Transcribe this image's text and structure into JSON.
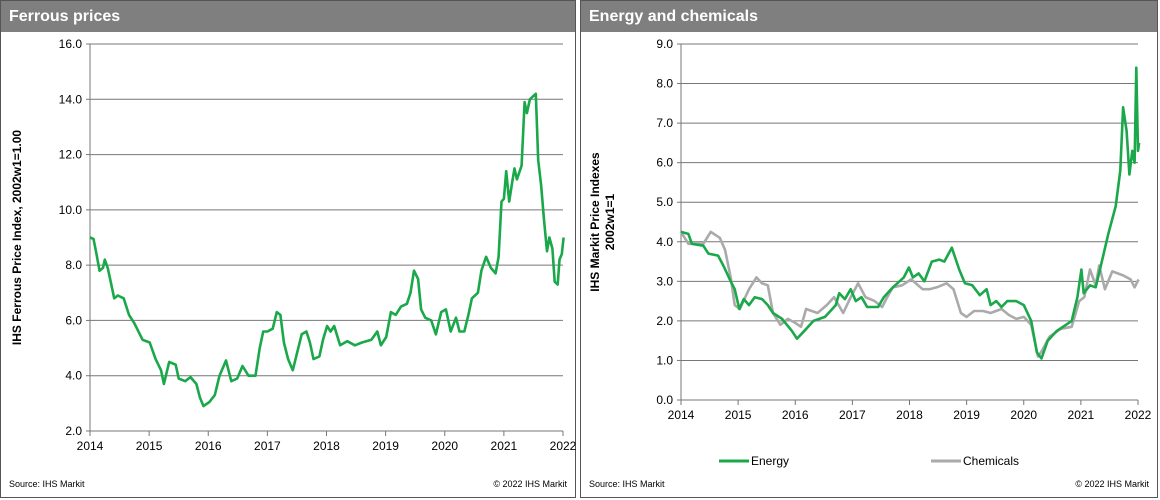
{
  "chart_data": [
    {
      "type": "line",
      "title": "Ferrous prices",
      "xlabel": "",
      "ylabel": "IHS Ferrous Price Index, 2002w1=1.00",
      "xlim": [
        2014,
        2022
      ],
      "ylim": [
        2.0,
        16.0
      ],
      "x_ticks": [
        "2014",
        "2015",
        "2016",
        "2017",
        "2018",
        "2019",
        "2020",
        "2021",
        "2022"
      ],
      "y_ticks": [
        "2.0",
        "4.0",
        "6.0",
        "8.0",
        "10.0",
        "12.0",
        "14.0",
        "16.0"
      ],
      "grid": true,
      "source": "Source:  IHS Markit",
      "copyright": "© 2022  IHS Markit",
      "series": [
        {
          "name": "Ferrous",
          "color": "#1aa84a",
          "points": [
            [
              2014.0,
              9.0
            ],
            [
              2014.06,
              8.95
            ],
            [
              2014.11,
              8.4
            ],
            [
              2014.16,
              7.8
            ],
            [
              2014.22,
              7.9
            ],
            [
              2014.25,
              8.2
            ],
            [
              2014.3,
              7.9
            ],
            [
              2014.35,
              7.4
            ],
            [
              2014.41,
              6.8
            ],
            [
              2014.47,
              6.9
            ],
            [
              2014.57,
              6.8
            ],
            [
              2014.66,
              6.2
            ],
            [
              2014.75,
              5.9
            ],
            [
              2014.89,
              5.3
            ],
            [
              2015.01,
              5.2
            ],
            [
              2015.11,
              4.6
            ],
            [
              2015.2,
              4.2
            ],
            [
              2015.25,
              3.7
            ],
            [
              2015.34,
              4.5
            ],
            [
              2015.45,
              4.4
            ],
            [
              2015.5,
              3.9
            ],
            [
              2015.61,
              3.8
            ],
            [
              2015.7,
              3.95
            ],
            [
              2015.8,
              3.7
            ],
            [
              2015.86,
              3.2
            ],
            [
              2015.92,
              2.9
            ],
            [
              2016.02,
              3.05
            ],
            [
              2016.11,
              3.3
            ],
            [
              2016.19,
              4.0
            ],
            [
              2016.3,
              4.55
            ],
            [
              2016.39,
              3.8
            ],
            [
              2016.49,
              3.9
            ],
            [
              2016.58,
              4.35
            ],
            [
              2016.68,
              4.0
            ],
            [
              2016.8,
              4.0
            ],
            [
              2016.87,
              5.0
            ],
            [
              2016.93,
              5.6
            ],
            [
              2017.0,
              5.6
            ],
            [
              2017.09,
              5.7
            ],
            [
              2017.16,
              6.3
            ],
            [
              2017.22,
              6.2
            ],
            [
              2017.28,
              5.2
            ],
            [
              2017.35,
              4.6
            ],
            [
              2017.43,
              4.2
            ],
            [
              2017.5,
              4.8
            ],
            [
              2017.58,
              5.5
            ],
            [
              2017.66,
              5.6
            ],
            [
              2017.72,
              5.2
            ],
            [
              2017.78,
              4.6
            ],
            [
              2017.88,
              4.7
            ],
            [
              2017.94,
              5.3
            ],
            [
              2018.01,
              5.8
            ],
            [
              2018.07,
              5.6
            ],
            [
              2018.13,
              5.8
            ],
            [
              2018.23,
              5.1
            ],
            [
              2018.35,
              5.25
            ],
            [
              2018.48,
              5.1
            ],
            [
              2018.6,
              5.2
            ],
            [
              2018.76,
              5.3
            ],
            [
              2018.86,
              5.6
            ],
            [
              2018.92,
              5.1
            ],
            [
              2019.01,
              5.4
            ],
            [
              2019.09,
              6.3
            ],
            [
              2019.17,
              6.2
            ],
            [
              2019.26,
              6.5
            ],
            [
              2019.36,
              6.6
            ],
            [
              2019.42,
              7.0
            ],
            [
              2019.48,
              7.8
            ],
            [
              2019.55,
              7.5
            ],
            [
              2019.6,
              6.4
            ],
            [
              2019.67,
              6.1
            ],
            [
              2019.77,
              6.0
            ],
            [
              2019.85,
              5.5
            ],
            [
              2019.94,
              6.3
            ],
            [
              2020.02,
              6.4
            ],
            [
              2020.1,
              5.6
            ],
            [
              2020.19,
              6.1
            ],
            [
              2020.25,
              5.6
            ],
            [
              2020.33,
              5.6
            ],
            [
              2020.4,
              6.2
            ],
            [
              2020.46,
              6.8
            ],
            [
              2020.56,
              7.0
            ],
            [
              2020.62,
              7.8
            ],
            [
              2020.7,
              8.3
            ],
            [
              2020.78,
              7.9
            ],
            [
              2020.86,
              7.7
            ],
            [
              2020.91,
              8.3
            ],
            [
              2020.96,
              10.3
            ],
            [
              2021.0,
              10.4
            ],
            [
              2021.04,
              11.4
            ],
            [
              2021.09,
              10.3
            ],
            [
              2021.14,
              11.0
            ],
            [
              2021.18,
              11.5
            ],
            [
              2021.22,
              11.1
            ],
            [
              2021.3,
              11.6
            ],
            [
              2021.35,
              13.9
            ],
            [
              2021.39,
              13.5
            ],
            [
              2021.44,
              14.0
            ],
            [
              2021.49,
              14.1
            ],
            [
              2021.54,
              14.2
            ],
            [
              2021.58,
              11.8
            ],
            [
              2021.63,
              10.9
            ],
            [
              2021.68,
              9.6
            ],
            [
              2021.73,
              8.5
            ],
            [
              2021.77,
              9.0
            ],
            [
              2021.82,
              8.6
            ],
            [
              2021.86,
              7.4
            ],
            [
              2021.91,
              7.3
            ],
            [
              2021.94,
              8.2
            ],
            [
              2021.98,
              8.4
            ],
            [
              2022.01,
              9.0
            ]
          ]
        }
      ]
    },
    {
      "type": "line",
      "title": "Energy and chemicals",
      "xlabel": "",
      "ylabel": "IHS Markit Price Indexes",
      "ylabel2": "2002w1=1",
      "xlim": [
        2014,
        2022
      ],
      "ylim": [
        0.0,
        9.0
      ],
      "x_ticks": [
        "2014",
        "2015",
        "2016",
        "2017",
        "2018",
        "2019",
        "2020",
        "2021",
        "2022"
      ],
      "y_ticks": [
        "0.0",
        "1.0",
        "2.0",
        "3.0",
        "4.0",
        "5.0",
        "6.0",
        "7.0",
        "8.0",
        "9.0"
      ],
      "grid": true,
      "legend": "bottom",
      "source": "Source:  IHS Markit",
      "copyright": "© 2022  IHS Markit",
      "series": [
        {
          "name": "Energy",
          "color": "#1aa84a",
          "points": [
            [
              2014.0,
              4.25
            ],
            [
              2014.13,
              4.2
            ],
            [
              2014.19,
              3.95
            ],
            [
              2014.39,
              3.9
            ],
            [
              2014.48,
              3.7
            ],
            [
              2014.65,
              3.65
            ],
            [
              2014.74,
              3.4
            ],
            [
              2014.87,
              3.0
            ],
            [
              2014.94,
              2.8
            ],
            [
              2015.02,
              2.3
            ],
            [
              2015.1,
              2.55
            ],
            [
              2015.19,
              2.4
            ],
            [
              2015.29,
              2.6
            ],
            [
              2015.42,
              2.55
            ],
            [
              2015.52,
              2.4
            ],
            [
              2015.61,
              2.2
            ],
            [
              2015.77,
              2.05
            ],
            [
              2015.94,
              1.75
            ],
            [
              2016.03,
              1.55
            ],
            [
              2016.16,
              1.75
            ],
            [
              2016.32,
              2.0
            ],
            [
              2016.52,
              2.1
            ],
            [
              2016.71,
              2.4
            ],
            [
              2016.77,
              2.7
            ],
            [
              2016.87,
              2.55
            ],
            [
              2016.97,
              2.8
            ],
            [
              2017.06,
              2.5
            ],
            [
              2017.16,
              2.6
            ],
            [
              2017.26,
              2.35
            ],
            [
              2017.45,
              2.35
            ],
            [
              2017.55,
              2.6
            ],
            [
              2017.71,
              2.85
            ],
            [
              2017.9,
              3.1
            ],
            [
              2017.99,
              3.35
            ],
            [
              2018.06,
              3.1
            ],
            [
              2018.16,
              3.2
            ],
            [
              2018.26,
              3.0
            ],
            [
              2018.39,
              3.5
            ],
            [
              2018.52,
              3.55
            ],
            [
              2018.61,
              3.5
            ],
            [
              2018.74,
              3.85
            ],
            [
              2018.87,
              3.3
            ],
            [
              2018.97,
              2.95
            ],
            [
              2019.1,
              2.9
            ],
            [
              2019.23,
              2.65
            ],
            [
              2019.35,
              2.8
            ],
            [
              2019.42,
              2.4
            ],
            [
              2019.52,
              2.5
            ],
            [
              2019.61,
              2.35
            ],
            [
              2019.71,
              2.5
            ],
            [
              2019.87,
              2.5
            ],
            [
              2020.0,
              2.4
            ],
            [
              2020.13,
              2.0
            ],
            [
              2020.23,
              1.2
            ],
            [
              2020.31,
              1.05
            ],
            [
              2020.42,
              1.5
            ],
            [
              2020.58,
              1.75
            ],
            [
              2020.74,
              1.9
            ],
            [
              2020.84,
              2.0
            ],
            [
              2020.94,
              2.6
            ],
            [
              2021.01,
              3.3
            ],
            [
              2021.05,
              2.7
            ],
            [
              2021.16,
              2.9
            ],
            [
              2021.26,
              2.85
            ],
            [
              2021.35,
              3.4
            ],
            [
              2021.48,
              4.2
            ],
            [
              2021.61,
              4.9
            ],
            [
              2021.69,
              5.8
            ],
            [
              2021.74,
              7.4
            ],
            [
              2021.8,
              6.8
            ],
            [
              2021.85,
              5.7
            ],
            [
              2021.9,
              6.3
            ],
            [
              2021.94,
              6.0
            ],
            [
              2021.97,
              8.4
            ],
            [
              2022.0,
              6.3
            ],
            [
              2022.02,
              6.5
            ]
          ]
        },
        {
          "name": "Chemicals",
          "color": "#aaaaaa",
          "points": [
            [
              2014.0,
              4.25
            ],
            [
              2014.13,
              3.95
            ],
            [
              2014.39,
              3.95
            ],
            [
              2014.52,
              4.25
            ],
            [
              2014.68,
              4.1
            ],
            [
              2014.77,
              3.8
            ],
            [
              2014.87,
              3.1
            ],
            [
              2014.94,
              2.4
            ],
            [
              2015.03,
              2.3
            ],
            [
              2015.19,
              2.8
            ],
            [
              2015.32,
              3.1
            ],
            [
              2015.42,
              2.95
            ],
            [
              2015.52,
              2.9
            ],
            [
              2015.61,
              2.2
            ],
            [
              2015.74,
              1.9
            ],
            [
              2015.87,
              2.05
            ],
            [
              2016.0,
              1.95
            ],
            [
              2016.1,
              1.85
            ],
            [
              2016.19,
              2.3
            ],
            [
              2016.39,
              2.2
            ],
            [
              2016.55,
              2.4
            ],
            [
              2016.68,
              2.6
            ],
            [
              2016.84,
              2.2
            ],
            [
              2016.97,
              2.6
            ],
            [
              2017.1,
              2.95
            ],
            [
              2017.23,
              2.6
            ],
            [
              2017.39,
              2.5
            ],
            [
              2017.52,
              2.35
            ],
            [
              2017.61,
              2.6
            ],
            [
              2017.71,
              2.85
            ],
            [
              2017.87,
              2.9
            ],
            [
              2018.03,
              3.05
            ],
            [
              2018.23,
              2.8
            ],
            [
              2018.35,
              2.8
            ],
            [
              2018.48,
              2.85
            ],
            [
              2018.65,
              2.95
            ],
            [
              2018.77,
              2.8
            ],
            [
              2018.9,
              2.2
            ],
            [
              2019.0,
              2.1
            ],
            [
              2019.13,
              2.25
            ],
            [
              2019.29,
              2.25
            ],
            [
              2019.42,
              2.2
            ],
            [
              2019.61,
              2.3
            ],
            [
              2019.74,
              2.15
            ],
            [
              2019.87,
              2.05
            ],
            [
              2020.0,
              2.1
            ],
            [
              2020.13,
              1.9
            ],
            [
              2020.25,
              1.1
            ],
            [
              2020.32,
              1.25
            ],
            [
              2020.45,
              1.6
            ],
            [
              2020.65,
              1.8
            ],
            [
              2020.84,
              1.85
            ],
            [
              2020.97,
              2.5
            ],
            [
              2021.06,
              2.6
            ],
            [
              2021.16,
              3.3
            ],
            [
              2021.26,
              2.9
            ],
            [
              2021.32,
              3.4
            ],
            [
              2021.42,
              2.8
            ],
            [
              2021.55,
              3.25
            ],
            [
              2021.74,
              3.15
            ],
            [
              2021.87,
              3.05
            ],
            [
              2021.94,
              2.85
            ],
            [
              2022.01,
              3.05
            ]
          ]
        }
      ]
    }
  ]
}
